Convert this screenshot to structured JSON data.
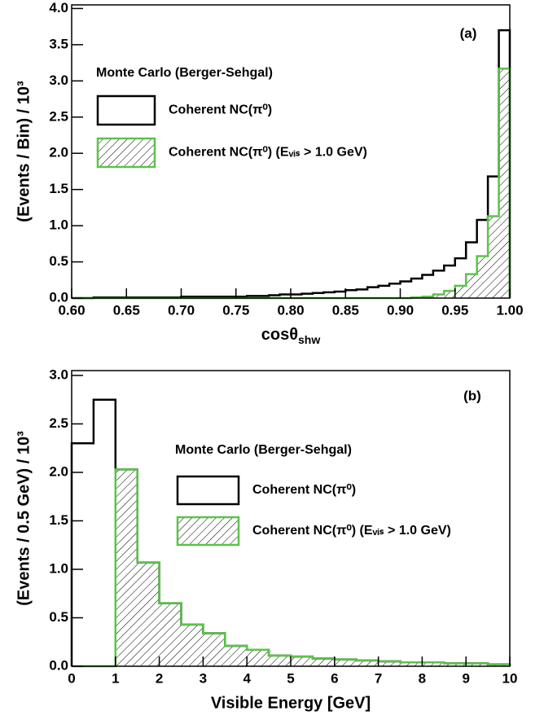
{
  "chart_data": [
    {
      "type": "histogram",
      "ylabel": "(Events / Bin) / 10³",
      "xlabel": [
        "cosθ",
        "shw"
      ],
      "annotations": [
        "(a)",
        "Monte Carlo (Berger-Sehgal)"
      ],
      "bins": [
        0.6,
        0.61,
        0.62,
        0.63,
        0.64,
        0.65,
        0.66,
        0.67,
        0.68,
        0.69,
        0.7,
        0.71,
        0.72,
        0.73,
        0.74,
        0.75,
        0.76,
        0.77,
        0.78,
        0.79,
        0.8,
        0.81,
        0.82,
        0.83,
        0.84,
        0.85,
        0.86,
        0.87,
        0.88,
        0.89,
        0.9,
        0.91,
        0.92,
        0.93,
        0.94,
        0.95,
        0.96,
        0.97,
        0.98,
        0.99,
        1.0
      ],
      "series": [
        {
          "name": "Coherent NC(π⁰)",
          "color": "#000000",
          "hatch": false,
          "values": [
            0.0,
            0.0,
            0.01,
            0.01,
            0.01,
            0.01,
            0.01,
            0.01,
            0.01,
            0.01,
            0.02,
            0.02,
            0.02,
            0.02,
            0.02,
            0.02,
            0.03,
            0.03,
            0.04,
            0.05,
            0.05,
            0.06,
            0.07,
            0.08,
            0.09,
            0.11,
            0.12,
            0.15,
            0.17,
            0.2,
            0.23,
            0.27,
            0.32,
            0.38,
            0.45,
            0.55,
            0.77,
            1.08,
            1.68,
            3.7
          ]
        },
        {
          "name": "Coherent NC(π⁰) (Eᵥᵢₛ > 1.0 GeV)",
          "color": "#5cc34a",
          "hatch": true,
          "values": [
            0,
            0,
            0,
            0,
            0,
            0,
            0,
            0,
            0,
            0,
            0,
            0,
            0,
            0,
            0,
            0,
            0,
            0,
            0,
            0,
            0,
            0,
            0,
            0,
            0,
            0,
            0,
            0,
            0,
            0,
            0,
            0.01,
            0.02,
            0.05,
            0.1,
            0.17,
            0.33,
            0.58,
            1.13,
            3.17
          ]
        }
      ],
      "xlim": [
        0.6,
        1.0
      ],
      "xticks": [
        {
          "value": 0.6,
          "label": "0.60"
        },
        0.65,
        {
          "value": 0.7,
          "label": "0.70"
        },
        0.75,
        {
          "value": 0.8,
          "label": "0.80"
        },
        0.85,
        {
          "value": 0.9,
          "label": "0.90"
        },
        0.95,
        {
          "value": 1,
          "label": "1.00"
        }
      ],
      "ylim": [
        0,
        4.05
      ],
      "yticks": [
        {
          "value": 0,
          "label": "0.0"
        },
        0.5,
        {
          "value": 1,
          "label": "1.0"
        },
        1.5,
        {
          "value": 2,
          "label": "2.0"
        },
        2.5,
        {
          "value": 3,
          "label": "3.0"
        },
        3.5,
        {
          "value": 4,
          "label": "4.0"
        }
      ]
    },
    {
      "type": "histogram",
      "ylabel": "(Events / 0.5 GeV) / 10³",
      "xlabel": "Visible Energy [GeV]",
      "annotations": [
        "(b)",
        "Monte Carlo (Berger-Sehgal)"
      ],
      "bins": [
        0,
        0.5,
        1,
        1.5,
        2,
        2.5,
        3,
        3.5,
        4,
        4.5,
        5,
        5.5,
        6,
        6.5,
        7,
        7.5,
        8,
        8.5,
        9,
        9.5,
        10
      ],
      "series": [
        {
          "name": "Coherent NC(π⁰)",
          "color": "#000000",
          "hatch": false,
          "values": [
            2.3,
            2.75,
            2.03,
            1.07,
            0.65,
            0.43,
            0.34,
            0.21,
            0.17,
            0.11,
            0.1,
            0.08,
            0.07,
            0.06,
            0.05,
            0.04,
            0.04,
            0.03,
            0.03,
            0.02
          ]
        },
        {
          "name": "Coherent NC(π⁰) (Eᵥᵢₛ > 1.0 GeV)",
          "color": "#5cc34a",
          "hatch": true,
          "values": [
            0,
            0,
            2.03,
            1.07,
            0.65,
            0.43,
            0.34,
            0.21,
            0.17,
            0.11,
            0.1,
            0.08,
            0.07,
            0.06,
            0.05,
            0.04,
            0.04,
            0.03,
            0.03,
            0.02
          ]
        }
      ],
      "xlim": [
        0,
        10
      ],
      "xticks": [
        0,
        1,
        2,
        3,
        4,
        5,
        6,
        7,
        8,
        9,
        10
      ],
      "ylim": [
        0,
        3.05
      ],
      "yticks": [
        {
          "value": 0,
          "label": "0.0"
        },
        0.5,
        {
          "value": 1,
          "label": "1.0"
        },
        1.5,
        {
          "value": 2,
          "label": "2.0"
        },
        2.5,
        {
          "value": 3,
          "label": "3.0"
        }
      ]
    }
  ]
}
